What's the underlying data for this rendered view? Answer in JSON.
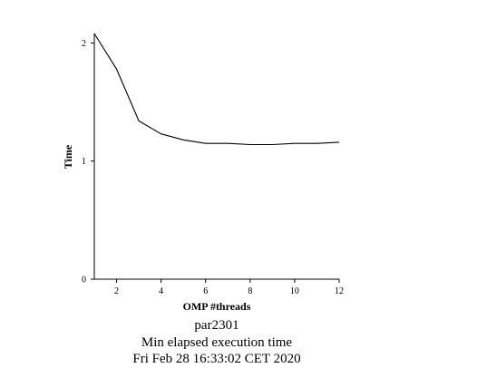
{
  "chart_data": {
    "type": "line",
    "xlabel": "OMP #threads",
    "ylabel": "Time",
    "xlim": [
      1,
      12
    ],
    "ylim": [
      0,
      2.08
    ],
    "x_ticks": [
      2,
      4,
      6,
      8,
      10,
      12
    ],
    "y_ticks": [
      0,
      1,
      2
    ],
    "grid": false,
    "series": [
      {
        "x": [
          1,
          2,
          3,
          4,
          5,
          6,
          7,
          8,
          9,
          10,
          11,
          12
        ],
        "values": [
          2.09,
          1.78,
          1.34,
          1.23,
          1.18,
          1.15,
          1.15,
          1.14,
          1.14,
          1.15,
          1.15,
          1.16
        ],
        "color": "#000000"
      }
    ],
    "captions": [
      "par2301",
      "Min elapsed execution time",
      "Fri Feb 28 16:33:02 CET 2020"
    ]
  }
}
